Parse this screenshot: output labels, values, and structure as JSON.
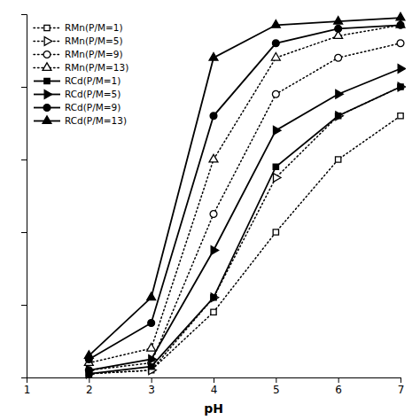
{
  "chart_data": {
    "type": "line",
    "x_label": "pH",
    "x": [
      2,
      3,
      4,
      5,
      6,
      7
    ],
    "xlim": [
      1,
      7
    ],
    "xticks": [
      1,
      2,
      3,
      4,
      5,
      6,
      7
    ],
    "ylim": [
      0,
      1
    ],
    "yticks": [
      0.0,
      0.2,
      0.4,
      0.6,
      0.8,
      1.0
    ],
    "tick_labels": "x",
    "grid": false,
    "legend": "upper-left",
    "series": [
      {
        "name": "RMn(P/M=1)",
        "color": "black",
        "marker": "square-open",
        "line_style": "dotted",
        "values": [
          0.01,
          0.02,
          0.18,
          0.4,
          0.6,
          0.72
        ]
      },
      {
        "name": "RMn(P/M=5)",
        "color": "black",
        "marker": "triangle-right-open",
        "line_style": "dotted",
        "values": [
          0.01,
          0.02,
          0.22,
          0.55,
          0.72,
          0.8
        ]
      },
      {
        "name": "RMn(P/M=9)",
        "color": "black",
        "marker": "circle-open",
        "line_style": "dotted",
        "values": [
          0.02,
          0.04,
          0.45,
          0.78,
          0.88,
          0.92
        ]
      },
      {
        "name": "RMn(P/M=13)",
        "color": "black",
        "marker": "triangle-up-open",
        "line_style": "dotted",
        "values": [
          0.04,
          0.08,
          0.6,
          0.88,
          0.94,
          0.97
        ]
      },
      {
        "name": "RCd(P/M=1)",
        "color": "black",
        "marker": "square",
        "line_style": "solid",
        "values": [
          0.01,
          0.03,
          0.22,
          0.58,
          0.72,
          0.8
        ]
      },
      {
        "name": "RCd(P/M=5)",
        "color": "black",
        "marker": "triangle-right",
        "line_style": "solid",
        "values": [
          0.02,
          0.05,
          0.35,
          0.68,
          0.78,
          0.85
        ]
      },
      {
        "name": "RCd(P/M=9)",
        "color": "black",
        "marker": "circle",
        "line_style": "solid",
        "values": [
          0.05,
          0.15,
          0.72,
          0.92,
          0.96,
          0.97
        ]
      },
      {
        "name": "RCd(P/M=13)",
        "color": "black",
        "marker": "triangle-up",
        "line_style": "solid",
        "values": [
          0.06,
          0.22,
          0.88,
          0.97,
          0.98,
          0.99
        ]
      }
    ]
  }
}
